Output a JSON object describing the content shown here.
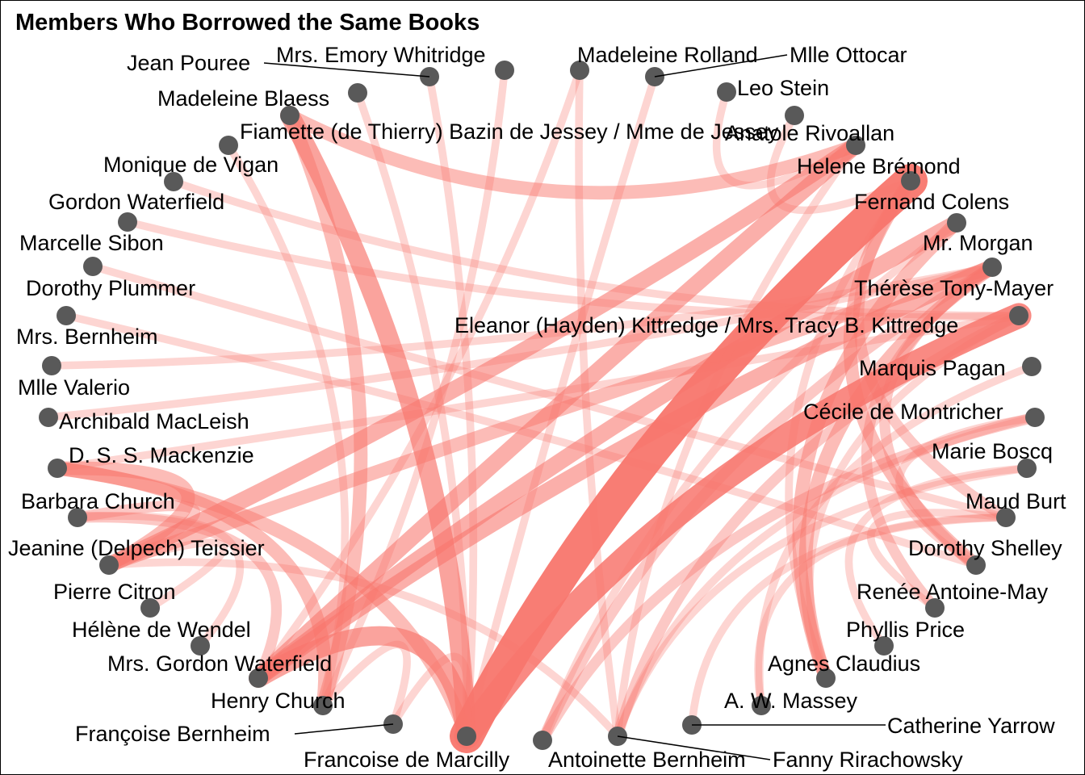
{
  "title": "Members Who Borrowed the Same Books",
  "colors": {
    "edge": "#F8766D",
    "node": "#595959",
    "text": "#000000"
  },
  "nodes": [
    {
      "id": "n0",
      "name": "Jean Pouree"
    },
    {
      "id": "n1",
      "name": "Mrs. Emory Whitridge"
    },
    {
      "id": "n2",
      "name": "Madeleine Rolland"
    },
    {
      "id": "n3",
      "name": "Mlle Ottocar"
    },
    {
      "id": "n4",
      "name": "Madeleine Blaess"
    },
    {
      "id": "n5",
      "name": "Leo Stein"
    },
    {
      "id": "n6",
      "name": "Fiamette (de Thierry) Bazin de Jessey / Mme de Jessey"
    },
    {
      "id": "n7",
      "name": "Anatole Rivoallan"
    },
    {
      "id": "n8",
      "name": "Monique de Vigan"
    },
    {
      "id": "n9",
      "name": "Helene Brémond"
    },
    {
      "id": "n10",
      "name": "Gordon Waterfield"
    },
    {
      "id": "n11",
      "name": "Fernand Colens"
    },
    {
      "id": "n12",
      "name": "Marcelle Sibon"
    },
    {
      "id": "n13",
      "name": "Mr. Morgan"
    },
    {
      "id": "n14",
      "name": "Dorothy Plummer"
    },
    {
      "id": "n15",
      "name": "Thérèse Tony-Mayer"
    },
    {
      "id": "n16",
      "name": "Eleanor (Hayden) Kittredge / Mrs. Tracy B. Kittredge"
    },
    {
      "id": "n17",
      "name": "Mrs. Bernheim"
    },
    {
      "id": "n18",
      "name": "Marquis Pagan"
    },
    {
      "id": "n19",
      "name": "Mlle Valerio"
    },
    {
      "id": "n20",
      "name": "Archibald MacLeish"
    },
    {
      "id": "n21",
      "name": "Cécile de Montricher"
    },
    {
      "id": "n22",
      "name": "D. S. S. Mackenzie"
    },
    {
      "id": "n23",
      "name": "Marie Boscq"
    },
    {
      "id": "n24",
      "name": "Barbara Church"
    },
    {
      "id": "n25",
      "name": "Maud Burt"
    },
    {
      "id": "n26",
      "name": "Jeanine (Delpech) Teissier"
    },
    {
      "id": "n27",
      "name": "Dorothy Shelley"
    },
    {
      "id": "n28",
      "name": "Pierre Citron"
    },
    {
      "id": "n29",
      "name": "Renée Antoine-May"
    },
    {
      "id": "n30",
      "name": "Hélène de Wendel"
    },
    {
      "id": "n31",
      "name": "Phyllis Price"
    },
    {
      "id": "n32",
      "name": "Mrs. Gordon Waterfield"
    },
    {
      "id": "n33",
      "name": "Agnes Claudius"
    },
    {
      "id": "n34",
      "name": "Henry Church"
    },
    {
      "id": "n35",
      "name": "A. W. Massey"
    },
    {
      "id": "n36",
      "name": "Catherine Yarrow"
    },
    {
      "id": "n37",
      "name": "Françoise Bernheim"
    },
    {
      "id": "n38",
      "name": "Francoise de Marcilly"
    },
    {
      "id": "n39",
      "name": "Antoinette Bernheim"
    },
    {
      "id": "n40",
      "name": "Fanny Rirachowsky"
    }
  ],
  "edges": [
    {
      "a": "n38",
      "b": "n11",
      "w": 10
    },
    {
      "a": "n38",
      "b": "n16",
      "w": 7
    },
    {
      "a": "n38",
      "b": "n6",
      "w": 5
    },
    {
      "a": "n38",
      "b": "n32",
      "w": 5
    },
    {
      "a": "n32",
      "b": "n9",
      "w": 4
    },
    {
      "a": "n32",
      "b": "n13",
      "w": 4
    },
    {
      "a": "n32",
      "b": "n15",
      "w": 4
    },
    {
      "a": "n26",
      "b": "n9",
      "w": 4
    },
    {
      "a": "n26",
      "b": "n15",
      "w": 3
    },
    {
      "a": "n26",
      "b": "n22",
      "w": 3
    },
    {
      "a": "n22",
      "b": "n34",
      "w": 3
    },
    {
      "a": "n22",
      "b": "n38",
      "w": 3
    },
    {
      "a": "n6",
      "b": "n9",
      "w": 3
    },
    {
      "a": "n6",
      "b": "n34",
      "w": 3
    },
    {
      "a": "n24",
      "b": "n32",
      "w": 2
    },
    {
      "a": "n24",
      "b": "n26",
      "w": 2
    },
    {
      "a": "n11",
      "b": "n27",
      "w": 3
    },
    {
      "a": "n11",
      "b": "n25",
      "w": 2
    },
    {
      "a": "n15",
      "b": "n33",
      "w": 3
    },
    {
      "a": "n15",
      "b": "n27",
      "w": 2
    },
    {
      "a": "n15",
      "b": "n29",
      "w": 2
    },
    {
      "a": "n33",
      "b": "n13",
      "w": 3
    },
    {
      "a": "n39",
      "b": "n15",
      "w": 2
    },
    {
      "a": "n39",
      "b": "n21",
      "w": 2
    },
    {
      "a": "n40",
      "b": "n16",
      "w": 2
    },
    {
      "a": "n40",
      "b": "n2",
      "w": 1
    },
    {
      "a": "n1",
      "b": "n34",
      "w": 1
    },
    {
      "a": "n4",
      "b": "n38",
      "w": 1
    },
    {
      "a": "n8",
      "b": "n34",
      "w": 1
    },
    {
      "a": "n10",
      "b": "n16",
      "w": 1
    },
    {
      "a": "n12",
      "b": "n16",
      "w": 1
    },
    {
      "a": "n14",
      "b": "n25",
      "w": 1
    },
    {
      "a": "n17",
      "b": "n27",
      "w": 1
    },
    {
      "a": "n20",
      "b": "n15",
      "w": 1
    },
    {
      "a": "n19",
      "b": "n15",
      "w": 1
    },
    {
      "a": "n22",
      "b": "n16",
      "w": 1
    },
    {
      "a": "n26",
      "b": "n40",
      "w": 1
    },
    {
      "a": "n28",
      "b": "n26",
      "w": 1
    },
    {
      "a": "n30",
      "b": "n24",
      "w": 1
    },
    {
      "a": "n34",
      "b": "n37",
      "w": 1
    },
    {
      "a": "n37",
      "b": "n38",
      "w": 1
    },
    {
      "a": "n36",
      "b": "n25",
      "w": 1
    },
    {
      "a": "n35",
      "b": "n25",
      "w": 1
    },
    {
      "a": "n31",
      "b": "n23",
      "w": 1
    },
    {
      "a": "n29",
      "b": "n25",
      "w": 1
    },
    {
      "a": "n27",
      "b": "n21",
      "w": 1
    },
    {
      "a": "n5",
      "b": "n9",
      "w": 1
    },
    {
      "a": "n7",
      "b": "n11",
      "w": 1
    },
    {
      "a": "n3",
      "b": "n38",
      "w": 1
    },
    {
      "a": "n0",
      "b": "n38",
      "w": 1
    },
    {
      "a": "n2",
      "b": "n32",
      "w": 1
    },
    {
      "a": "n18",
      "b": "n35",
      "w": 1
    },
    {
      "a": "n23",
      "b": "n40",
      "w": 1
    },
    {
      "a": "n13",
      "b": "n39",
      "w": 1
    },
    {
      "a": "n9",
      "b": "n40",
      "w": 1
    },
    {
      "a": "n16",
      "b": "n33",
      "w": 1
    },
    {
      "a": "n11",
      "b": "n33",
      "w": 1
    },
    {
      "a": "n21",
      "b": "n40",
      "w": 1
    }
  ]
}
